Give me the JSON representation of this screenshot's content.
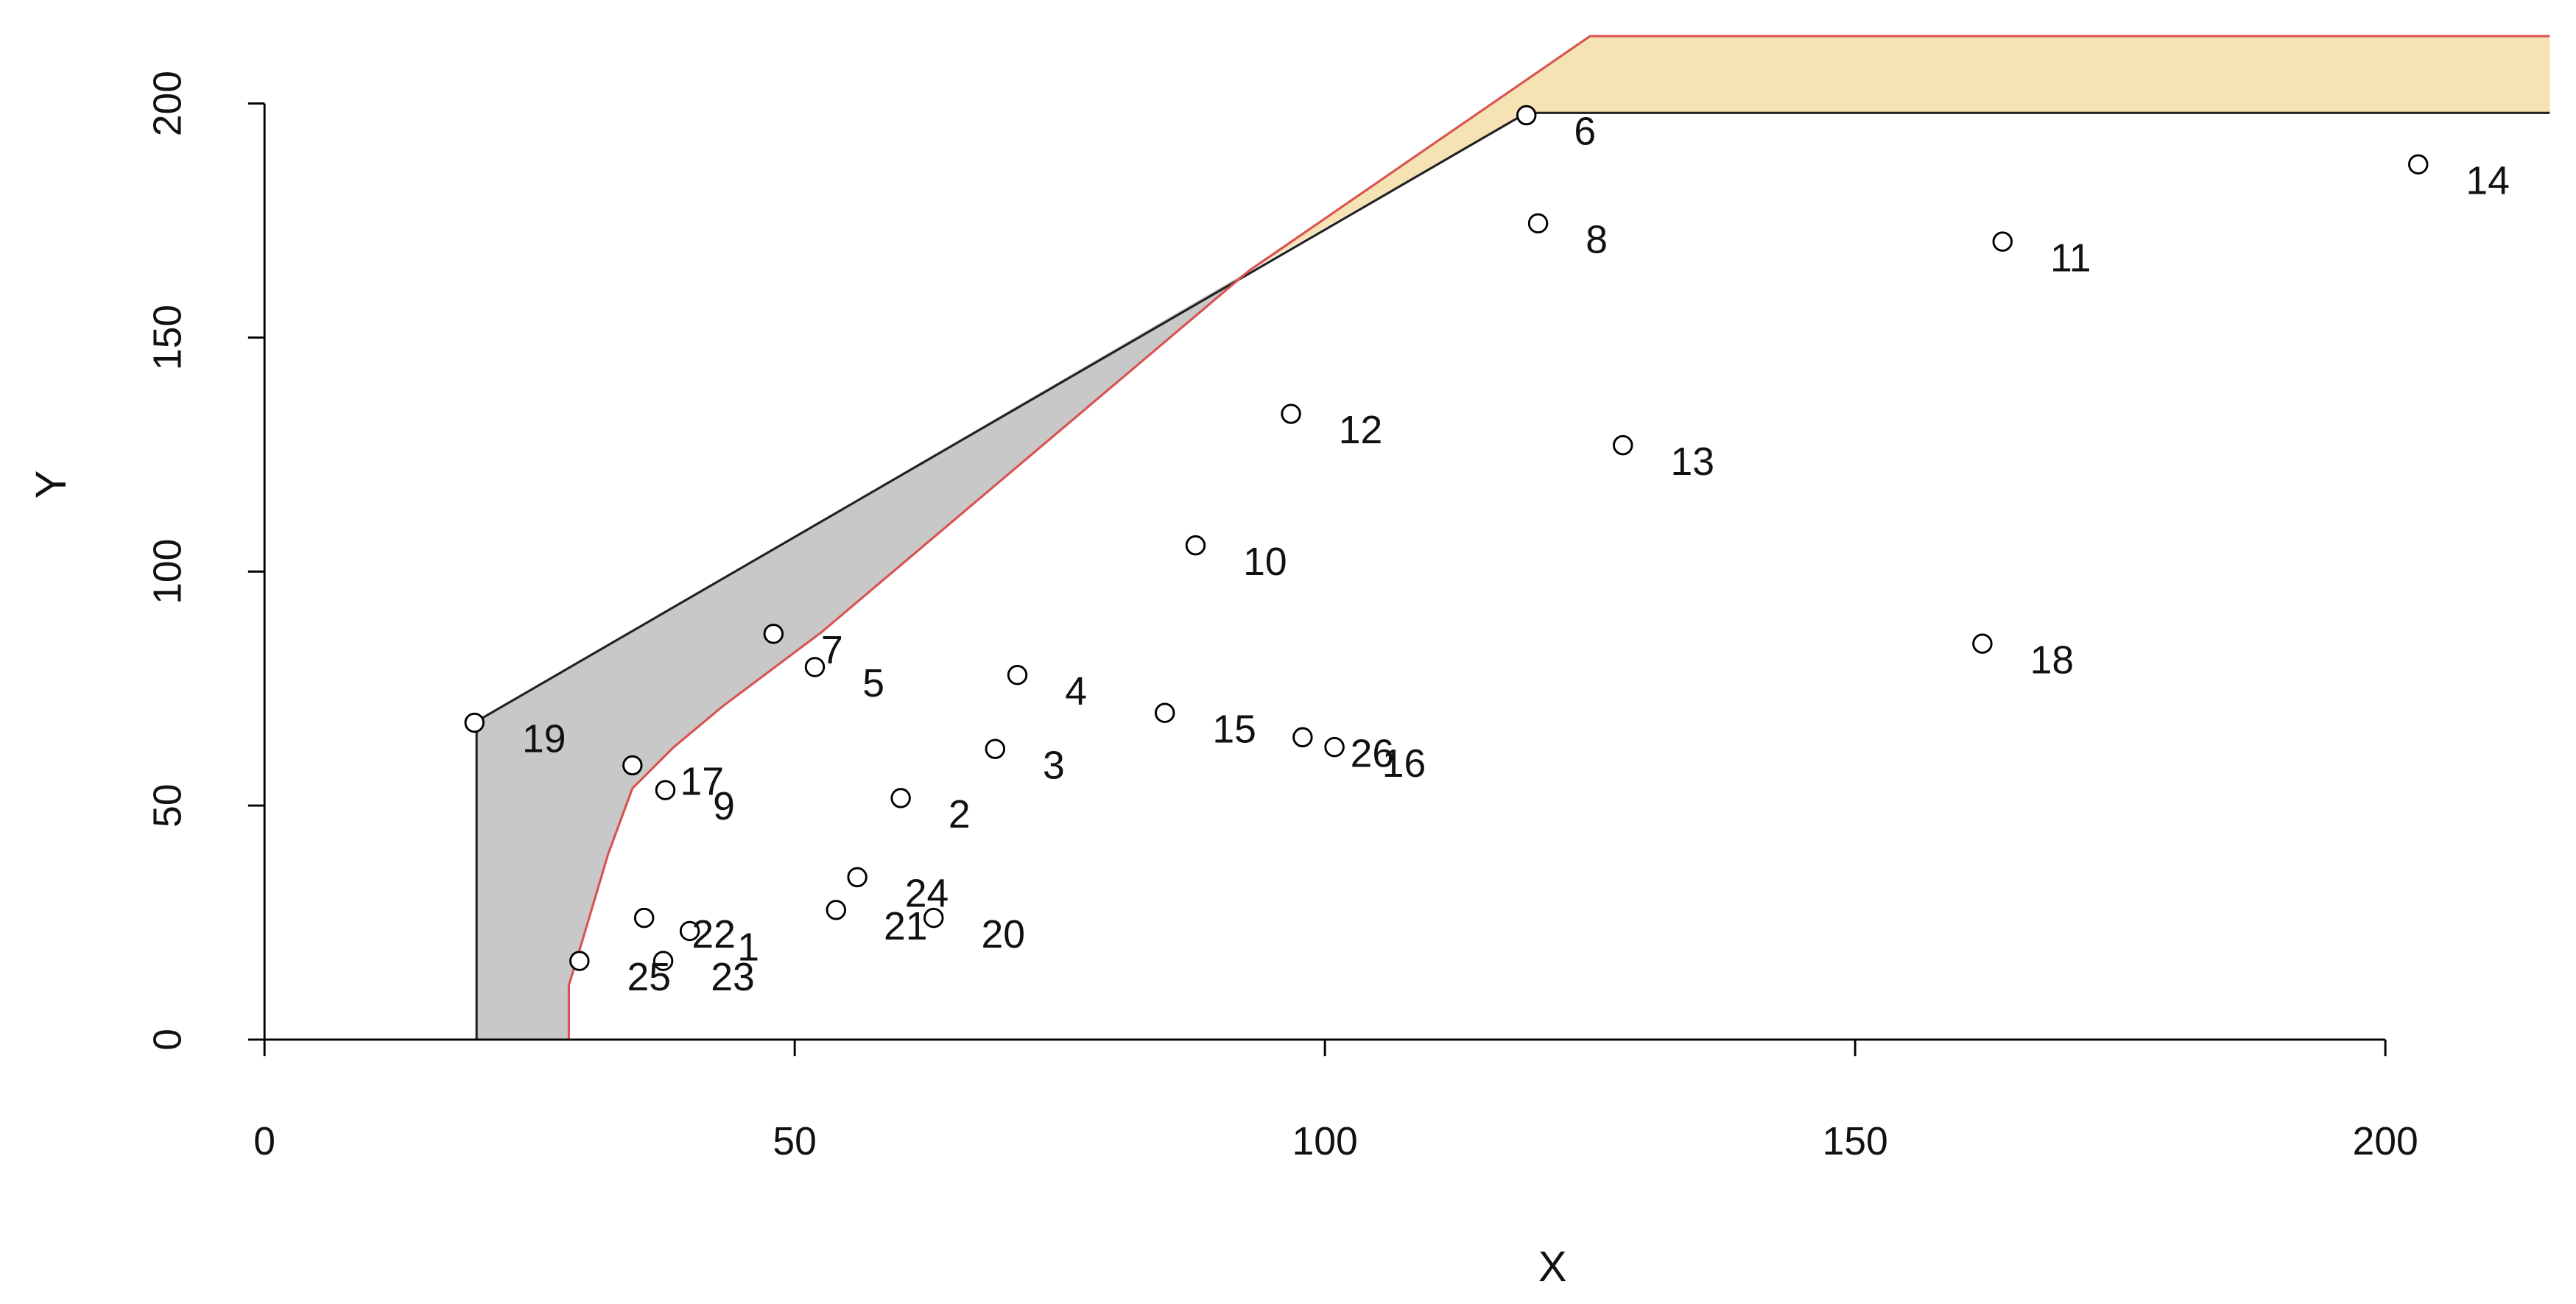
{
  "chart_data": {
    "type": "scatter",
    "xlabel": "X",
    "ylabel": "Y",
    "xlim": [
      0,
      215.5
    ],
    "ylim": [
      0,
      214.4
    ],
    "xticks": [
      0,
      50,
      100,
      150,
      200
    ],
    "yticks": [
      0,
      50,
      100,
      150,
      200
    ],
    "point_color": "#000000",
    "labels": [
      "1",
      "2",
      "3",
      "4",
      "5",
      "6",
      "7",
      "8",
      "9",
      "10",
      "11",
      "12",
      "13",
      "14",
      "15",
      "16",
      "17",
      "18",
      "19",
      "20",
      "21",
      "22",
      "23",
      "24",
      "25",
      "26"
    ],
    "x": [
      40.1,
      60.0,
      68.9,
      71.0,
      51.9,
      119.0,
      48.0,
      120.1,
      37.8,
      87.8,
      163.9,
      96.8,
      128.1,
      203.1,
      84.9,
      100.9,
      34.7,
      162.0,
      19.8,
      63.1,
      53.9,
      35.8,
      37.6,
      55.9,
      29.7,
      97.9
    ],
    "y": [
      23.2,
      51.6,
      62.1,
      77.9,
      79.6,
      197.5,
      86.7,
      174.4,
      53.3,
      105.6,
      170.5,
      133.7,
      127.0,
      187.0,
      69.8,
      62.5,
      58.6,
      84.6,
      67.7,
      26.0,
      27.7,
      26.0,
      16.8,
      34.7,
      16.8,
      64.6
    ],
    "regions": [
      {
        "color": "#c8c8c8",
        "x": [
          20,
          20,
          92.8,
          52.5,
          43.2,
          38.6,
          34.7,
          32.4,
          30.1,
          28.7,
          28.7
        ],
        "y": [
          0,
          68,
          164.2,
          87.0,
          71.2,
          62.5,
          53.7,
          39.6,
          22.1,
          11.6,
          0
        ]
      },
      {
        "color": "#f5e3b3",
        "x": [
          92.8,
          125.0,
          215.5,
          215.5,
          119
        ],
        "y": [
          164.2,
          214.4,
          214.4,
          198,
          198
        ]
      }
    ],
    "lines": [
      {
        "color": "#222222",
        "x": [
          20,
          20,
          119,
          215.5
        ],
        "y": [
          0,
          68,
          198,
          198
        ]
      },
      {
        "color": "#d9534f",
        "x": [
          28.7,
          28.7,
          30.1,
          32.4,
          34.7,
          38.6,
          43.2,
          52.5,
          92.8,
          125.0,
          215.5
        ],
        "y": [
          0,
          11.6,
          22.1,
          39.6,
          53.7,
          62.5,
          71.2,
          87.0,
          164.2,
          214.4,
          214.4
        ]
      }
    ]
  }
}
